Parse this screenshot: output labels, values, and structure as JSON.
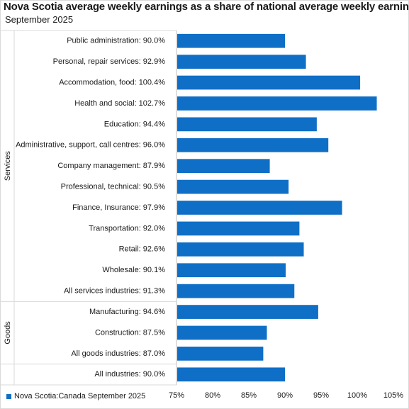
{
  "title": "Nova Scotia average weekly earnings as a share of national average weekly earnings",
  "subtitle": "September 2025",
  "legend": {
    "label": "Nova Scotia:Canada September 2025"
  },
  "colors": {
    "bar": "#0f6fc6",
    "grid": "#d9d9d9",
    "text": "#1a1a1a"
  },
  "chart_data": {
    "type": "bar",
    "orientation": "horizontal",
    "categories": [
      "Public administration: 90.0%",
      "Personal, repair services: 92.9%",
      "Accommodation, food: 100.4%",
      "Health and social: 102.7%",
      "Education: 94.4%",
      "Administrative, support, call centres: 96.0%",
      "Company management: 87.9%",
      "Professional, technical: 90.5%",
      "Finance, Insurance: 97.9%",
      "Transportation: 92.0%",
      "Retail: 92.6%",
      "Wholesale: 90.1%",
      "All services industries: 91.3%",
      "Manufacturing: 94.6%",
      "Construction: 87.5%",
      "All goods industries: 87.0%",
      "All industries: 90.0%"
    ],
    "series": [
      {
        "name": "Nova Scotia:Canada September 2025",
        "values": [
          90.0,
          92.9,
          100.4,
          102.7,
          94.4,
          96.0,
          87.9,
          90.5,
          97.9,
          92.0,
          92.6,
          90.1,
          91.3,
          94.6,
          87.5,
          87.0,
          90.0
        ]
      }
    ],
    "groups": [
      {
        "name": "Services",
        "count": 13
      },
      {
        "name": "Goods",
        "count": 3
      },
      {
        "name": "",
        "count": 1
      }
    ],
    "xlim": [
      75,
      105
    ],
    "xticks": [
      "75%",
      "80%",
      "85%",
      "90%",
      "95%",
      "100%",
      "105%"
    ],
    "xtick_values": [
      75,
      80,
      85,
      90,
      95,
      100,
      105
    ],
    "grid": false,
    "legend_position": "bottom-left"
  }
}
